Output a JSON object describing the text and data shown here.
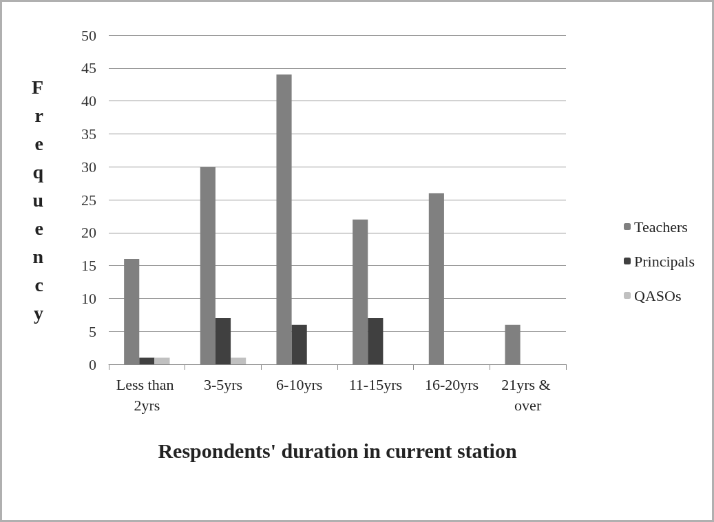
{
  "chart_data": {
    "type": "bar",
    "xlabel": "Respondents' duration in current station",
    "ylabel": "Frequency",
    "categories": [
      "Less than 2yrs",
      "3-5yrs",
      "6-10yrs",
      "11-15yrs",
      "16-20yrs",
      "21yrs & over"
    ],
    "series": [
      {
        "name": "Teachers",
        "color": "#808080",
        "values": [
          16,
          30,
          44,
          22,
          26,
          6
        ]
      },
      {
        "name": "Principals",
        "color": "#404040",
        "values": [
          1,
          7,
          6,
          7,
          0,
          0
        ]
      },
      {
        "name": "QASOs",
        "color": "#c0c0c0",
        "values": [
          1,
          1,
          0,
          0,
          0,
          0
        ]
      }
    ],
    "ylim": [
      0,
      50
    ],
    "yticks": [
      0,
      5,
      10,
      15,
      20,
      25,
      30,
      35,
      40,
      45,
      50
    ],
    "grid": "y",
    "legend": "right"
  }
}
